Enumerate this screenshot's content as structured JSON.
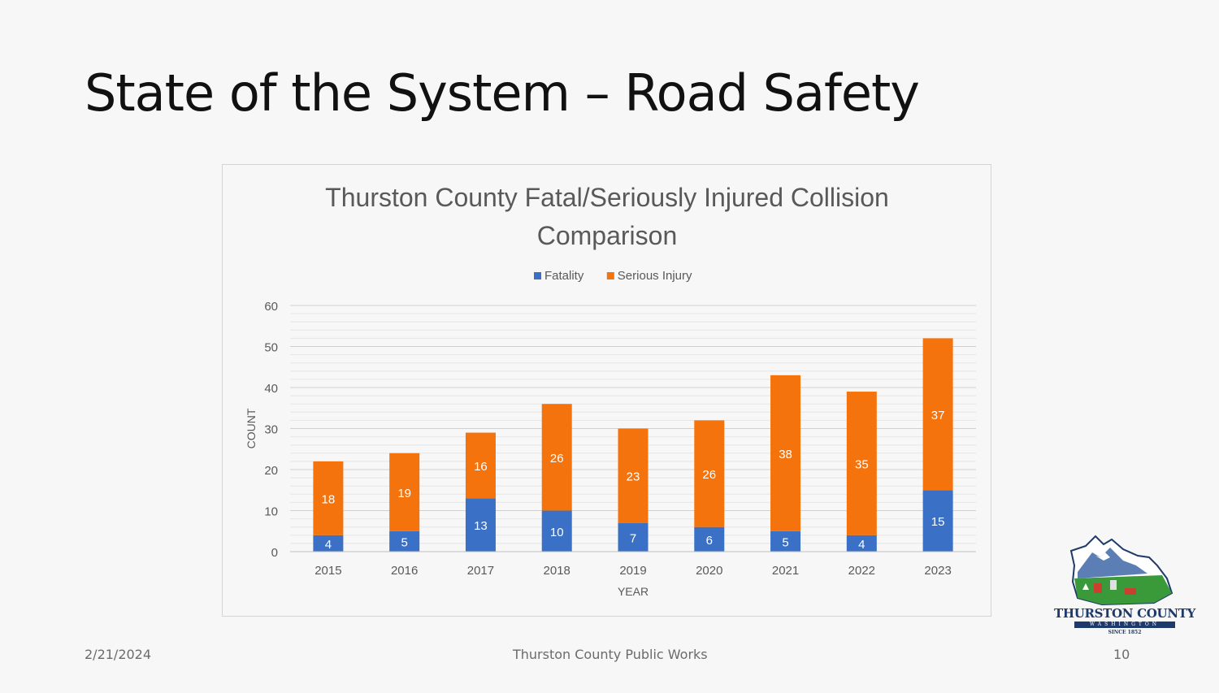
{
  "slide": {
    "title": "State of the System – Road Safety",
    "footer_date": "2/21/2024",
    "footer_center": "Thurston County Public Works",
    "page_number": "10"
  },
  "logo": {
    "name": "THURSTON COUNTY",
    "state": "WASHINGTON",
    "since": "SINCE 1852",
    "colors": {
      "navy": "#1e3a6b",
      "green": "#3a9a3a",
      "mountain": "#5b7fb5"
    }
  },
  "chart_data": {
    "type": "bar",
    "stacked": true,
    "title_lines": [
      "Thurston County Fatal/Seriously Injured Collision",
      "Comparison"
    ],
    "xlabel": "YEAR",
    "ylabel": "COUNT",
    "ylim": [
      0,
      60
    ],
    "yticks": [
      0,
      10,
      20,
      30,
      40,
      50,
      60
    ],
    "grid": true,
    "legend_position": "top",
    "categories": [
      "2015",
      "2016",
      "2017",
      "2018",
      "2019",
      "2020",
      "2021",
      "2022",
      "2023"
    ],
    "series": [
      {
        "name": "Fatality",
        "color": "#3a70c6",
        "values": [
          4,
          5,
          13,
          10,
          7,
          6,
          5,
          4,
          15
        ]
      },
      {
        "name": "Serious Injury",
        "color": "#f5730c",
        "values": [
          18,
          19,
          16,
          26,
          23,
          26,
          38,
          35,
          37
        ]
      }
    ]
  }
}
